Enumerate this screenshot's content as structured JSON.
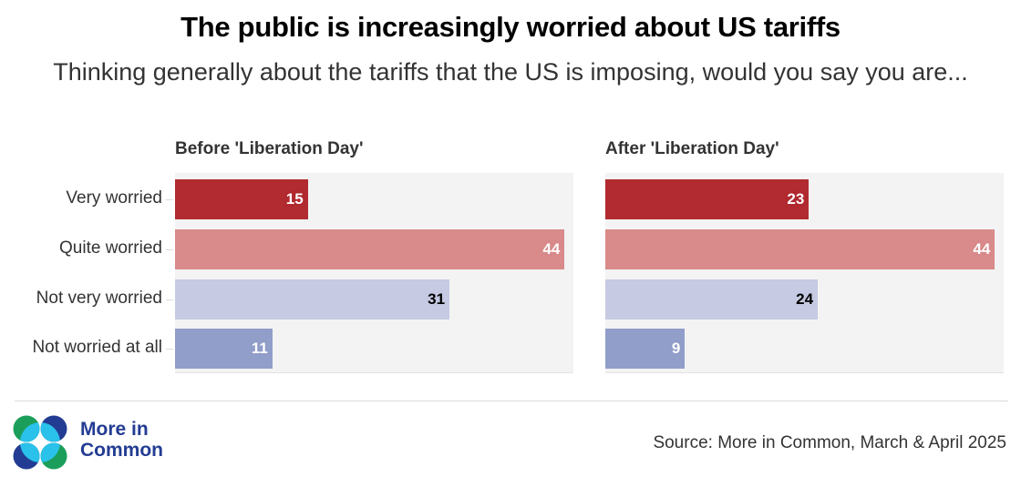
{
  "header": {
    "title": "The public is increasingly worried about US tariffs",
    "subtitle": "Thinking generally about the tariffs that the US is imposing, would you say you are..."
  },
  "chart_data": {
    "type": "bar",
    "orientation": "horizontal",
    "title": "The public is increasingly worried about US tariffs",
    "subtitle": "Thinking generally about the tariffs that the US is imposing, would you say you are...",
    "categories": [
      "Very worried",
      "Quite worried",
      "Not very worried",
      "Not worried at all"
    ],
    "category_colors": [
      "#B12B30",
      "#D98A8A",
      "#C6CAE2",
      "#919EC9"
    ],
    "label_colors": [
      "#ffffff",
      "#ffffff",
      "#000000",
      "#ffffff"
    ],
    "xlim": [
      0,
      45
    ],
    "grid": false,
    "unit": "%",
    "panels": [
      {
        "name": "Before 'Liberation Day'",
        "values": [
          15,
          44,
          31,
          11
        ]
      },
      {
        "name": "After 'Liberation Day'",
        "values": [
          23,
          44,
          24,
          9
        ]
      }
    ]
  },
  "footer": {
    "brand_line1": "More in",
    "brand_line2": "Common",
    "source": "Source: More in Common, March & April 2025",
    "logo_icon": "more-in-common-logo-icon",
    "colors": {
      "green": "#1b9e5a",
      "navy": "#233c93",
      "cyan": "#2ac1ea"
    }
  }
}
